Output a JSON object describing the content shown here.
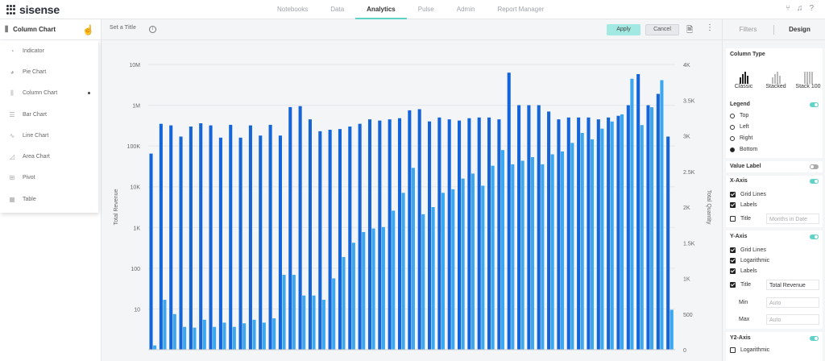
{
  "app": {
    "logo": "sisense",
    "nav": [
      "Notebooks",
      "Data",
      "Analytics",
      "Pulse",
      "Admin",
      "Report Manager"
    ],
    "active_nav": "Analytics"
  },
  "type_panel": {
    "selected": "Column Chart",
    "items": [
      {
        "label": "Indicator",
        "icon": "indicator-icon"
      },
      {
        "label": "Pie Chart",
        "icon": "pie-chart-icon"
      },
      {
        "label": "Column Chart",
        "icon": "column-chart-icon"
      },
      {
        "label": "Bar Chart",
        "icon": "bar-chart-icon"
      },
      {
        "label": "Line Chart",
        "icon": "line-chart-icon"
      },
      {
        "label": "Area Chart",
        "icon": "area-chart-icon"
      },
      {
        "label": "Pivot",
        "icon": "pivot-icon"
      },
      {
        "label": "Table",
        "icon": "table-icon"
      }
    ]
  },
  "toolbar": {
    "title_placeholder": "Set a Title",
    "apply": "Apply",
    "cancel": "Cancel"
  },
  "chart_data": {
    "type": "bar",
    "xlabel": "",
    "ylabel": "Total Revenue",
    "y2label": "Total Quantity",
    "y_scale": "log",
    "ylim": [
      1,
      10000000
    ],
    "y_ticks": [
      "10M",
      "1M",
      "100K",
      "10K",
      "1K",
      "100",
      "10"
    ],
    "y2lim": [
      0,
      4000
    ],
    "y2_ticks": [
      "4K",
      "3.5K",
      "3K",
      "2.5K",
      "2K",
      "1.5K",
      "1K",
      "500",
      "0"
    ],
    "grid": true,
    "series": [
      {
        "name": "Total Revenue",
        "color": "#1565d8",
        "values": [
          65000,
          350000,
          320000,
          170000,
          300000,
          360000,
          320000,
          160000,
          330000,
          160000,
          320000,
          180000,
          330000,
          180000,
          900000,
          950000,
          450000,
          230000,
          250000,
          260000,
          300000,
          350000,
          450000,
          420000,
          450000,
          480000,
          750000,
          800000,
          400000,
          500000,
          450000,
          420000,
          480000,
          500000,
          500000,
          450000,
          6300000,
          1000000,
          1000000,
          1000000,
          700000,
          450000,
          500000,
          500000,
          500000,
          450000,
          500000,
          550000,
          1000000,
          5800000,
          1000000,
          1900000,
          170000
        ]
      },
      {
        "name": "Total Quantity",
        "color": "#3ba7ee",
        "values": [
          60,
          700,
          500,
          320,
          310,
          420,
          320,
          380,
          320,
          370,
          420,
          380,
          440,
          1050,
          1050,
          760,
          760,
          700,
          1000,
          1300,
          1500,
          1650,
          1700,
          1720,
          1950,
          2200,
          2550,
          1900,
          2000,
          2200,
          2250,
          2400,
          2470,
          2300,
          2580,
          2800,
          2600,
          2650,
          2700,
          2600,
          2740,
          2780,
          2900,
          3040,
          2950,
          3100,
          3200,
          3300,
          3800,
          3150,
          3400,
          3780,
          560
        ]
      }
    ]
  },
  "design": {
    "tabs": [
      "Filters",
      "Design"
    ],
    "active_tab": "Design",
    "column_type": {
      "title": "Column Type",
      "options": [
        "Classic",
        "Stacked",
        "Stack 100"
      ],
      "selected": "Classic"
    },
    "legend": {
      "title": "Legend",
      "enabled": true,
      "options": [
        "Top",
        "Left",
        "Right",
        "Bottom"
      ],
      "selected": "Bottom"
    },
    "value_label": {
      "title": "Value Label",
      "enabled": false
    },
    "x_axis": {
      "title": "X-Axis",
      "enabled": true,
      "grid_lines": "Grid Lines",
      "labels": "Labels",
      "title_label": "Title",
      "title_placeholder": "Months in Date"
    },
    "y_axis": {
      "title": "Y-Axis",
      "enabled": true,
      "grid_lines": "Grid Lines",
      "logarithmic": "Logarithmic",
      "labels": "Labels",
      "title_label": "Title",
      "title_value": "Total Revenue",
      "min_label": "Min",
      "min_placeholder": "Auto",
      "max_label": "Max",
      "max_placeholder": "Auto"
    },
    "y2_axis": {
      "title": "Y2-Axis",
      "enabled": true,
      "logarithmic": "Logarithmic"
    }
  }
}
